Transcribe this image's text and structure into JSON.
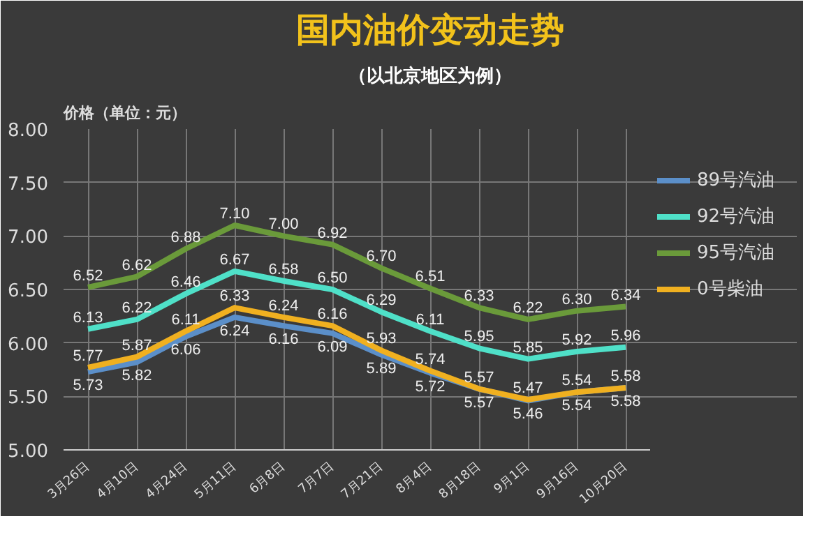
{
  "chart_data": {
    "type": "line",
    "title": "国内油价变动走势",
    "subtitle": "（以北京地区为例）",
    "ylabel": "价格（单位：元）",
    "categories": [
      "3月26日",
      "4月10日",
      "4月24日",
      "5月11日",
      "6月8日",
      "7月7日",
      "7月21日",
      "8月4日",
      "8月18日",
      "9月1日",
      "9月16日",
      "10月20日"
    ],
    "series": [
      {
        "name": "89号汽油",
        "color": "#5b8fc9",
        "values": [
          5.73,
          5.82,
          6.06,
          6.24,
          6.16,
          6.09,
          5.89,
          5.72,
          5.57,
          5.46,
          5.54,
          5.58
        ],
        "value_labels": [
          "5.73",
          "5.82",
          "6.06",
          "6.24",
          "6.16",
          "6.09",
          "5.89",
          "5.72",
          "5.57",
          "5.46",
          "5.54",
          "5.58"
        ]
      },
      {
        "name": "92号汽油",
        "color": "#4fe0c8",
        "values": [
          6.13,
          6.22,
          6.46,
          6.67,
          6.58,
          6.5,
          6.29,
          6.11,
          5.95,
          5.85,
          5.92,
          5.96
        ],
        "value_labels": [
          "6.13",
          "6.22",
          "6.46",
          "6.67",
          "6.58",
          "6.50",
          "6.29",
          "6.11",
          "5.95",
          "5.85",
          "5.92",
          "5.96"
        ]
      },
      {
        "name": "95号汽油",
        "color": "#6a9a3a",
        "values": [
          6.52,
          6.62,
          6.88,
          7.1,
          7.0,
          6.92,
          6.7,
          6.51,
          6.33,
          6.22,
          6.3,
          6.34
        ],
        "value_labels": [
          "6.52",
          "6.62",
          "6.88",
          "7.10",
          "7.00",
          "6.92",
          "6.70",
          "6.51",
          "6.33",
          "6.22",
          "6.30",
          "6.34"
        ]
      },
      {
        "name": "0号柴油",
        "color": "#f0b020",
        "values": [
          5.77,
          5.87,
          6.11,
          6.33,
          6.24,
          6.16,
          5.93,
          5.74,
          5.57,
          5.47,
          5.54,
          5.58
        ],
        "value_labels": [
          "5.77",
          "5.87",
          "6.11",
          "6.33",
          "6.24",
          "6.16",
          "5.93",
          "5.74",
          "5.57",
          "5.47",
          "5.54",
          "5.58"
        ]
      }
    ],
    "ylim": [
      5.0,
      8.0
    ],
    "yticks": [
      {
        "value": 5.0,
        "label": "5.00"
      },
      {
        "value": 5.5,
        "label": "5.50"
      },
      {
        "value": 6.0,
        "label": "6.00"
      },
      {
        "value": 6.5,
        "label": "6.50"
      },
      {
        "value": 7.0,
        "label": "7.00"
      },
      {
        "value": 7.5,
        "label": "7.50"
      },
      {
        "value": 8.0,
        "label": "8.00"
      }
    ],
    "grid": true,
    "legend": "right",
    "data_labels": true,
    "marker": "none",
    "line_style": "solid"
  }
}
